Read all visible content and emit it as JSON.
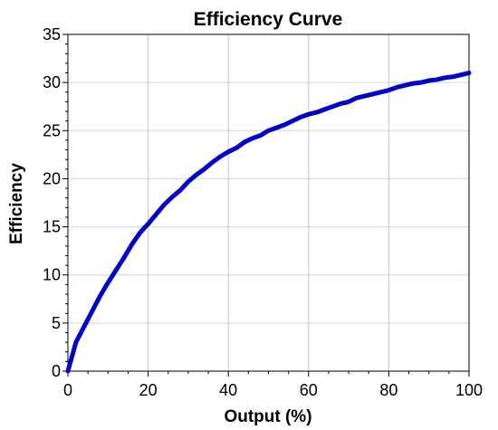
{
  "chart_data": {
    "type": "line",
    "title": "Efficiency Curve",
    "xlabel": "Output (%)",
    "ylabel": "Efficiency",
    "xlim": [
      0,
      100
    ],
    "ylim": [
      0,
      35
    ],
    "x_ticks": [
      0,
      20,
      40,
      60,
      80,
      100
    ],
    "y_ticks": [
      0,
      5,
      10,
      15,
      20,
      25,
      30,
      35
    ],
    "grid": true,
    "legend": "none",
    "series": [
      {
        "color": "#0000c8",
        "x": [
          0,
          2,
          4,
          6,
          8,
          10,
          12,
          14,
          16,
          18,
          20,
          22,
          24,
          26,
          28,
          30,
          32,
          34,
          36,
          38,
          40,
          42,
          44,
          46,
          48,
          50,
          52,
          54,
          56,
          58,
          60,
          62,
          64,
          66,
          68,
          70,
          72,
          74,
          76,
          78,
          80,
          82,
          84,
          86,
          88,
          90,
          92,
          94,
          96,
          98,
          100
        ],
        "values": [
          0,
          3.0,
          4.6,
          6.2,
          7.8,
          9.2,
          10.5,
          11.8,
          13.2,
          14.4,
          15.3,
          16.3,
          17.3,
          18.1,
          18.8,
          19.7,
          20.4,
          21.0,
          21.7,
          22.3,
          22.8,
          23.2,
          23.8,
          24.2,
          24.5,
          25.0,
          25.3,
          25.6,
          26.0,
          26.4,
          26.7,
          26.9,
          27.2,
          27.5,
          27.8,
          28.0,
          28.4,
          28.6,
          28.8,
          29.0,
          29.2,
          29.5,
          29.7,
          29.9,
          30.0,
          30.2,
          30.3,
          30.5,
          30.6,
          30.8,
          31.0
        ]
      }
    ]
  }
}
